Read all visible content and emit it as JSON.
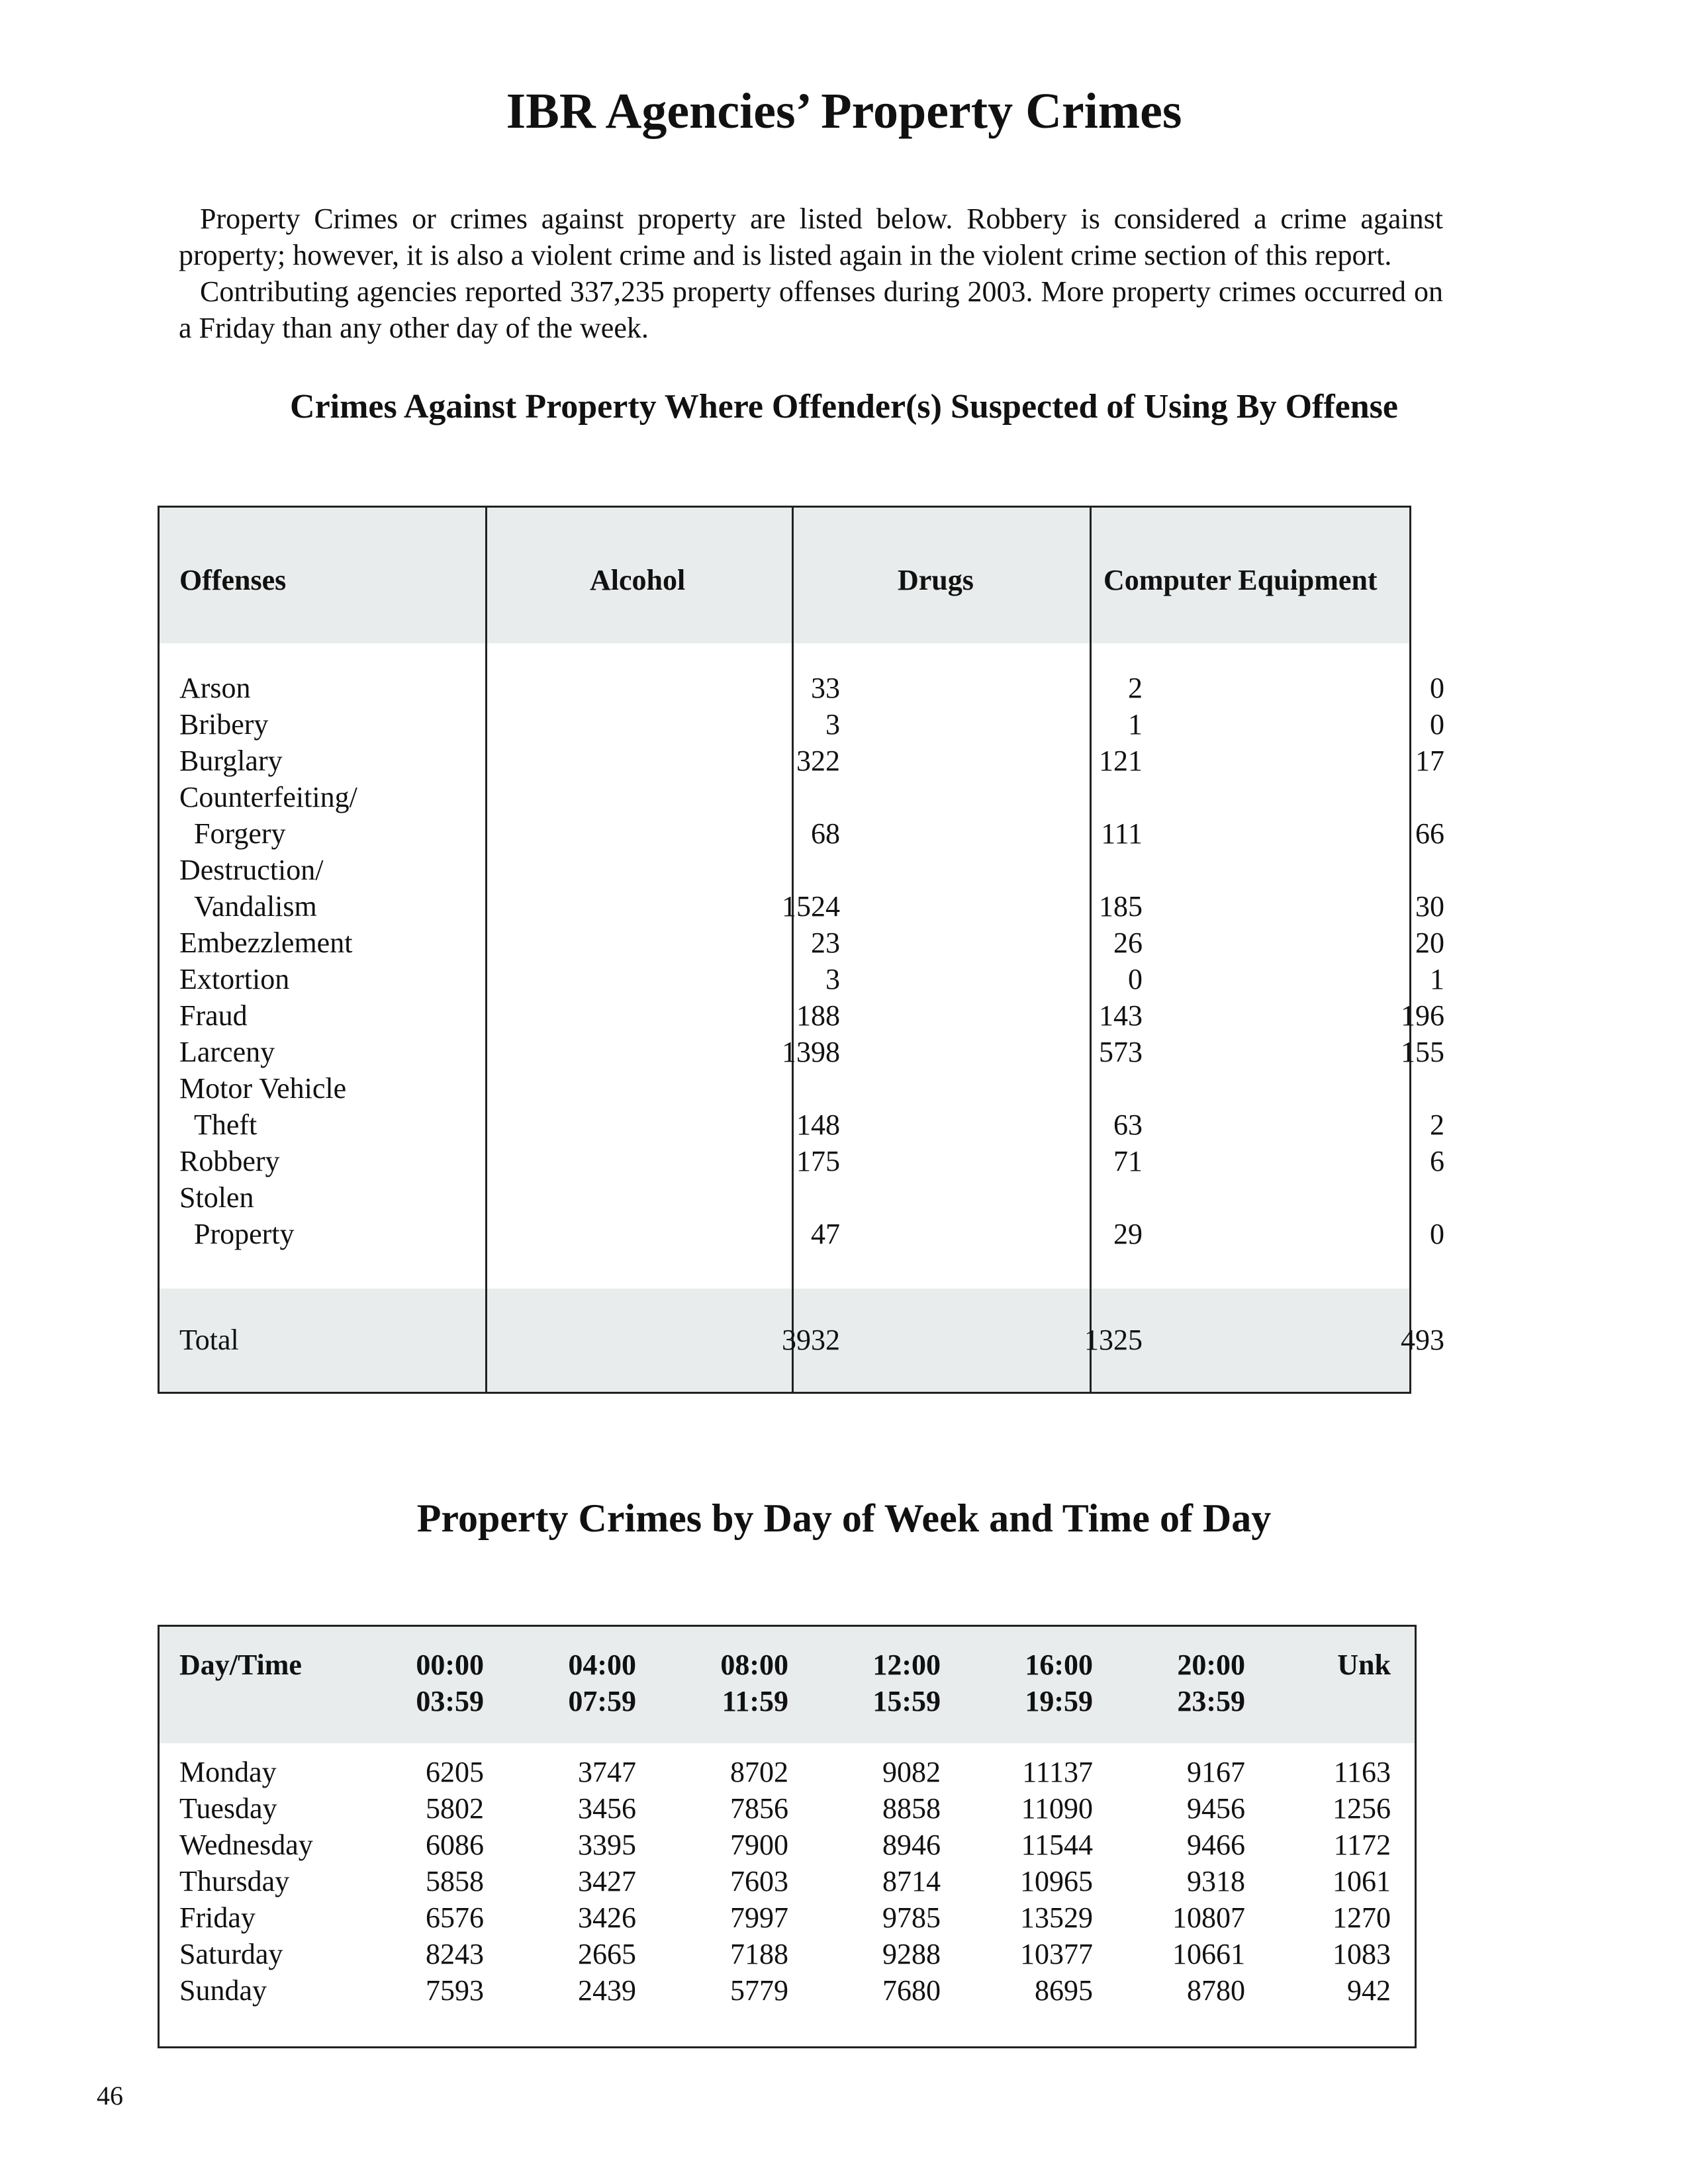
{
  "title": "IBR Agencies’ Property Crimes",
  "intro": {
    "paragraph1": "Property Crimes or crimes against property are listed below.  Robbery is considered a crime against property; however, it is also a violent crime and is listed again in the violent crime section of this report.",
    "paragraph2": "Contributing agencies reported 337,235 property offenses during 2003.  More property crimes occurred on a Friday than any other day of the week."
  },
  "table1": {
    "title": "Crimes Against Property Where Offender(s) Suspected of Using By Offense",
    "headers": [
      "Offenses",
      "Alcohol",
      "Drugs",
      "Computer Equipment"
    ],
    "lines": [
      [
        "Arson",
        "33",
        "2",
        "0"
      ],
      [
        "Bribery",
        "3",
        "1",
        "0"
      ],
      [
        "Burglary",
        "322",
        "121",
        "17"
      ],
      [
        "Counterfeiting/",
        "",
        "",
        ""
      ],
      [
        "  Forgery",
        "68",
        "111",
        "66"
      ],
      [
        "Destruction/",
        "",
        "",
        ""
      ],
      [
        "  Vandalism",
        "1524",
        "185",
        "30"
      ],
      [
        "Embezzlement",
        "23",
        "26",
        "20"
      ],
      [
        "Extortion",
        "3",
        "0",
        "1"
      ],
      [
        "Fraud",
        "188",
        "143",
        "196"
      ],
      [
        "Larceny",
        "1398",
        "573",
        "155"
      ],
      [
        "Motor Vehicle",
        "",
        "",
        ""
      ],
      [
        "  Theft",
        "148",
        "63",
        "2"
      ],
      [
        "Robbery",
        "175",
        "71",
        "6"
      ],
      [
        "Stolen",
        "",
        "",
        ""
      ],
      [
        "  Property",
        "47",
        "29",
        "0"
      ]
    ],
    "total": [
      "Total",
      "3932",
      "1325",
      "493"
    ]
  },
  "table2": {
    "title": "Property Crimes by Day of Week and Time of Day",
    "headers": [
      [
        "Day/Time",
        ""
      ],
      [
        "00:00",
        "03:59"
      ],
      [
        "04:00",
        "07:59"
      ],
      [
        "08:00",
        "11:59"
      ],
      [
        "12:00",
        "15:59"
      ],
      [
        "16:00",
        "19:59"
      ],
      [
        "20:00",
        "23:59"
      ],
      [
        "Unk",
        ""
      ]
    ],
    "rows": [
      [
        "Monday",
        "6205",
        "3747",
        "8702",
        "9082",
        "11137",
        "9167",
        "1163"
      ],
      [
        "Tuesday",
        "5802",
        "3456",
        "7856",
        "8858",
        "11090",
        "9456",
        "1256"
      ],
      [
        "Wednesday",
        "6086",
        "3395",
        "7900",
        "8946",
        "11544",
        "9466",
        "1172"
      ],
      [
        "Thursday",
        "5858",
        "3427",
        "7603",
        "8714",
        "10965",
        "9318",
        "1061"
      ],
      [
        "Friday",
        "6576",
        "3426",
        "7997",
        "9785",
        "13529",
        "10807",
        "1270"
      ],
      [
        "Saturday",
        "8243",
        "2665",
        "7188",
        "9288",
        "10377",
        "10661",
        "1083"
      ],
      [
        "Sunday",
        "7593",
        "2439",
        "5779",
        "7680",
        "8695",
        "8780",
        "942"
      ]
    ]
  },
  "page_number": "46"
}
